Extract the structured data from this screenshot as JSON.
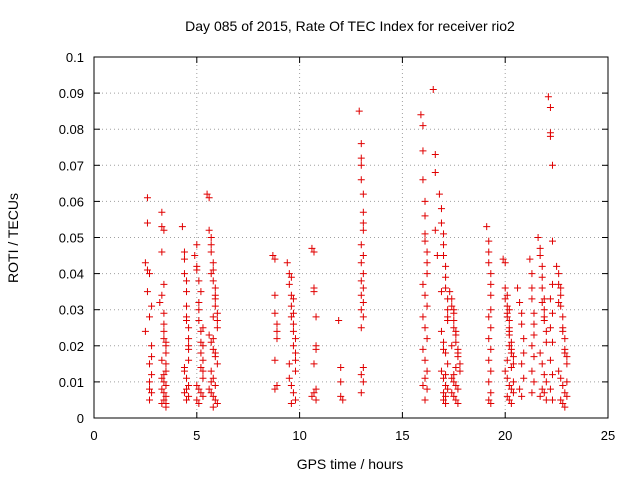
{
  "chart_data": {
    "type": "scatter",
    "title": "Day 085 of 2015, Rate Of TEC Index for receiver rio2",
    "xlabel": "GPS time / hours",
    "ylabel": "ROTI / TECUs",
    "xlim": [
      0,
      25
    ],
    "ylim": [
      0,
      0.1
    ],
    "x_ticks": [
      "0",
      "5",
      "10",
      "15",
      "20",
      "25"
    ],
    "y_ticks": [
      "0",
      "0.01",
      "0.02",
      "0.03",
      "0.04",
      "0.05",
      "0.06",
      "0.07",
      "0.08",
      "0.09",
      "0.1"
    ],
    "grid": true,
    "marker": "+",
    "color": "#e00000",
    "series": [
      {
        "x": [
          2.5,
          2.5,
          2.6,
          2.6,
          2.6,
          2.7,
          2.7,
          2.7,
          2.7,
          2.8,
          2.8,
          2.8,
          2.6,
          2.7,
          2.8,
          2.8,
          2.7,
          3.2,
          3.3,
          3.3,
          3.3,
          3.4,
          3.4,
          3.4,
          3.4,
          3.5,
          3.5,
          3.5,
          3.5,
          3.3,
          3.4,
          3.5,
          3.3,
          3.4,
          3.5,
          3.4,
          3.3,
          3.5,
          3.4,
          3.3,
          3.5,
          3.4,
          3.3,
          3.5,
          3.4,
          4.3,
          4.4,
          4.4,
          4.4,
          4.5,
          4.5,
          4.5,
          4.5,
          4.6,
          4.6,
          4.6,
          4.6,
          4.4,
          4.5,
          4.6,
          4.5,
          4.4,
          4.6,
          4.5,
          4.4,
          4.6,
          4.5,
          4.9,
          5.0,
          5.0,
          5.1,
          5.1,
          5.1,
          5.2,
          5.2,
          5.2,
          5.3,
          5.3,
          5.3,
          5.0,
          5.1,
          5.2,
          5.3,
          5.0,
          5.1,
          5.2,
          5.3,
          5.1,
          5.2,
          5.0,
          5.3,
          5.5,
          5.6,
          5.6,
          5.7,
          5.7,
          5.7,
          5.8,
          5.8,
          5.8,
          5.9,
          5.9,
          5.9,
          6.0,
          6.0,
          6.0,
          5.6,
          5.7,
          5.8,
          5.9,
          6.0,
          5.7,
          5.8,
          5.9,
          5.6,
          5.7,
          5.8,
          5.9,
          6.0,
          5.8,
          5.7,
          5.9,
          5.8,
          5.9,
          5.7,
          5.8,
          8.7,
          8.8,
          8.8,
          8.8,
          8.9,
          8.9,
          8.9,
          8.8,
          8.9,
          8.8,
          9.4,
          9.5,
          9.5,
          9.6,
          9.6,
          9.6,
          9.7,
          9.7,
          9.7,
          9.8,
          9.8,
          9.8,
          9.5,
          9.6,
          9.7,
          9.8,
          9.6,
          9.7,
          9.5,
          9.8,
          9.6,
          9.7,
          10.6,
          10.7,
          10.7,
          10.7,
          10.8,
          10.8,
          10.8,
          10.7,
          10.8,
          10.7,
          10.6,
          10.8,
          11.9,
          12.0,
          12.0,
          12.0,
          12.1,
          12.9,
          13.0,
          13.0,
          13.0,
          13.0,
          13.1,
          13.1,
          13.1,
          13.1,
          13.0,
          13.1,
          13.0,
          13.1,
          13.0,
          13.1,
          13.0,
          13.1,
          13.0,
          13.1,
          13.0,
          13.1,
          13.0,
          13.1,
          13.0,
          15.9,
          16.0,
          16.0,
          16.0,
          16.1,
          16.1,
          16.1,
          16.1,
          16.2,
          16.2,
          16.2,
          16.0,
          16.1,
          16.2,
          16.0,
          16.1,
          16.2,
          16.0,
          16.1,
          16.2,
          16.1,
          16.0,
          16.2,
          16.1,
          16.5,
          16.6,
          16.6,
          16.6,
          16.7,
          16.8,
          16.9,
          16.9,
          17.0,
          17.0,
          17.0,
          17.1,
          17.1,
          17.1,
          17.2,
          17.2,
          17.2,
          16.9,
          17.0,
          17.1,
          17.2,
          16.9,
          17.0,
          17.1,
          17.2,
          17.0,
          17.1,
          17.0,
          17.1,
          16.9,
          17.2,
          17.0,
          17.1,
          17.3,
          17.4,
          17.4,
          17.5,
          17.5,
          17.5,
          17.6,
          17.6,
          17.7,
          17.7,
          17.8,
          17.8,
          17.4,
          17.5,
          17.6,
          17.7,
          17.4,
          17.5,
          17.6,
          17.7,
          17.5,
          17.6,
          17.7,
          17.5,
          17.6,
          17.4,
          19.1,
          19.2,
          19.2,
          19.2,
          19.3,
          19.3,
          19.3,
          19.3,
          19.2,
          19.3,
          19.2,
          19.3,
          19.2,
          19.3,
          19.2,
          19.3,
          19.2,
          19.3,
          19.9,
          20.0,
          20.0,
          20.1,
          20.1,
          20.1,
          20.2,
          20.2,
          20.2,
          20.3,
          20.3,
          20.4,
          20.4,
          20.0,
          20.1,
          20.2,
          20.3,
          20.4,
          20.1,
          20.2,
          20.3,
          20.0,
          20.1,
          20.2,
          20.3,
          20.4,
          20.2,
          20.1,
          20.3,
          20.2,
          20.6,
          20.7,
          20.8,
          20.8,
          20.9,
          20.9,
          20.8,
          20.9,
          20.7,
          20.8,
          21.2,
          21.3,
          21.3,
          21.3,
          21.4,
          21.4,
          21.4,
          21.3,
          21.4,
          21.3,
          21.4,
          21.3,
          21.6,
          21.7,
          21.7,
          21.8,
          21.8,
          21.8,
          21.9,
          21.9,
          21.9,
          22.0,
          22.0,
          21.7,
          21.8,
          21.9,
          22.0,
          21.8,
          21.9,
          21.7,
          22.0,
          21.8,
          21.9,
          22.1,
          22.2,
          22.2,
          22.2,
          22.3,
          22.3,
          22.3,
          22.2,
          22.3,
          22.2,
          22.3,
          22.2,
          22.3,
          22.2,
          22.3,
          22.5,
          22.6,
          22.6,
          22.7,
          22.7,
          22.8,
          22.8,
          22.9,
          22.9,
          23.0,
          23.0,
          22.6,
          22.7,
          22.8,
          22.9,
          23.0,
          22.7,
          22.8,
          22.9,
          22.6,
          22.8,
          22.9,
          23.0,
          22.7
        ],
        "y": [
          0.043,
          0.024,
          0.061,
          0.054,
          0.041,
          0.04,
          0.015,
          0.01,
          0.008,
          0.007,
          0.02,
          0.031,
          0.035,
          0.005,
          0.012,
          0.017,
          0.028,
          0.032,
          0.057,
          0.053,
          0.046,
          0.037,
          0.029,
          0.026,
          0.022,
          0.021,
          0.018,
          0.015,
          0.013,
          0.011,
          0.01,
          0.009,
          0.008,
          0.007,
          0.006,
          0.005,
          0.004,
          0.004,
          0.012,
          0.034,
          0.02,
          0.024,
          0.016,
          0.003,
          0.052,
          0.053,
          0.046,
          0.044,
          0.04,
          0.038,
          0.035,
          0.031,
          0.028,
          0.025,
          0.022,
          0.019,
          0.016,
          0.013,
          0.011,
          0.009,
          0.008,
          0.007,
          0.006,
          0.005,
          0.014,
          0.02,
          0.027,
          0.045,
          0.048,
          0.041,
          0.038,
          0.032,
          0.027,
          0.024,
          0.021,
          0.018,
          0.016,
          0.013,
          0.011,
          0.009,
          0.008,
          0.007,
          0.006,
          0.005,
          0.004,
          0.014,
          0.02,
          0.03,
          0.035,
          0.042,
          0.025,
          0.062,
          0.061,
          0.052,
          0.05,
          0.048,
          0.046,
          0.043,
          0.041,
          0.038,
          0.036,
          0.033,
          0.031,
          0.029,
          0.027,
          0.025,
          0.023,
          0.021,
          0.019,
          0.017,
          0.015,
          0.013,
          0.011,
          0.009,
          0.008,
          0.007,
          0.006,
          0.005,
          0.004,
          0.003,
          0.01,
          0.018,
          0.028,
          0.034,
          0.04,
          0.022,
          0.045,
          0.044,
          0.034,
          0.029,
          0.026,
          0.024,
          0.022,
          0.016,
          0.009,
          0.008,
          0.043,
          0.04,
          0.037,
          0.034,
          0.031,
          0.028,
          0.026,
          0.024,
          0.02,
          0.018,
          0.016,
          0.013,
          0.011,
          0.009,
          0.007,
          0.005,
          0.004,
          0.029,
          0.015,
          0.022,
          0.039,
          0.033,
          0.047,
          0.046,
          0.036,
          0.035,
          0.028,
          0.02,
          0.019,
          0.015,
          0.008,
          0.007,
          0.006,
          0.005,
          0.027,
          0.014,
          0.01,
          0.006,
          0.005,
          0.085,
          0.076,
          0.072,
          0.07,
          0.066,
          0.062,
          0.057,
          0.054,
          0.052,
          0.048,
          0.045,
          0.043,
          0.04,
          0.038,
          0.036,
          0.034,
          0.032,
          0.03,
          0.028,
          0.025,
          0.014,
          0.012,
          0.01,
          0.007,
          0.084,
          0.081,
          0.074,
          0.066,
          0.06,
          0.056,
          0.051,
          0.049,
          0.046,
          0.043,
          0.04,
          0.037,
          0.034,
          0.031,
          0.028,
          0.025,
          0.022,
          0.019,
          0.016,
          0.013,
          0.011,
          0.009,
          0.008,
          0.005,
          0.091,
          0.073,
          0.068,
          0.052,
          0.045,
          0.062,
          0.058,
          0.054,
          0.051,
          0.048,
          0.045,
          0.042,
          0.039,
          0.036,
          0.033,
          0.03,
          0.027,
          0.024,
          0.021,
          0.018,
          0.015,
          0.013,
          0.011,
          0.009,
          0.008,
          0.007,
          0.006,
          0.005,
          0.004,
          0.035,
          0.028,
          0.019,
          0.012,
          0.035,
          0.033,
          0.031,
          0.029,
          0.027,
          0.025,
          0.023,
          0.021,
          0.019,
          0.017,
          0.015,
          0.013,
          0.011,
          0.01,
          0.009,
          0.008,
          0.007,
          0.006,
          0.005,
          0.004,
          0.03,
          0.024,
          0.018,
          0.012,
          0.014,
          0.02,
          0.053,
          0.049,
          0.046,
          0.043,
          0.04,
          0.037,
          0.034,
          0.03,
          0.028,
          0.025,
          0.022,
          0.019,
          0.016,
          0.013,
          0.01,
          0.007,
          0.005,
          0.004,
          0.044,
          0.043,
          0.036,
          0.034,
          0.031,
          0.029,
          0.027,
          0.025,
          0.023,
          0.021,
          0.019,
          0.017,
          0.015,
          0.013,
          0.011,
          0.009,
          0.008,
          0.007,
          0.006,
          0.005,
          0.004,
          0.033,
          0.028,
          0.02,
          0.014,
          0.01,
          0.024,
          0.016,
          0.018,
          0.03,
          0.036,
          0.032,
          0.029,
          0.026,
          0.022,
          0.018,
          0.015,
          0.011,
          0.008,
          0.006,
          0.044,
          0.04,
          0.036,
          0.033,
          0.029,
          0.026,
          0.023,
          0.02,
          0.017,
          0.013,
          0.01,
          0.007,
          0.05,
          0.047,
          0.045,
          0.042,
          0.039,
          0.036,
          0.033,
          0.03,
          0.027,
          0.024,
          0.021,
          0.018,
          0.015,
          0.012,
          0.01,
          0.008,
          0.007,
          0.006,
          0.005,
          0.032,
          0.028,
          0.089,
          0.086,
          0.079,
          0.078,
          0.07,
          0.049,
          0.037,
          0.033,
          0.029,
          0.025,
          0.021,
          0.016,
          0.012,
          0.008,
          0.005,
          0.042,
          0.04,
          0.037,
          0.034,
          0.031,
          0.028,
          0.025,
          0.022,
          0.019,
          0.017,
          0.015,
          0.013,
          0.011,
          0.009,
          0.007,
          0.006,
          0.005,
          0.004,
          0.003,
          0.032,
          0.024,
          0.018,
          0.01,
          0.036
        ]
      }
    ]
  }
}
